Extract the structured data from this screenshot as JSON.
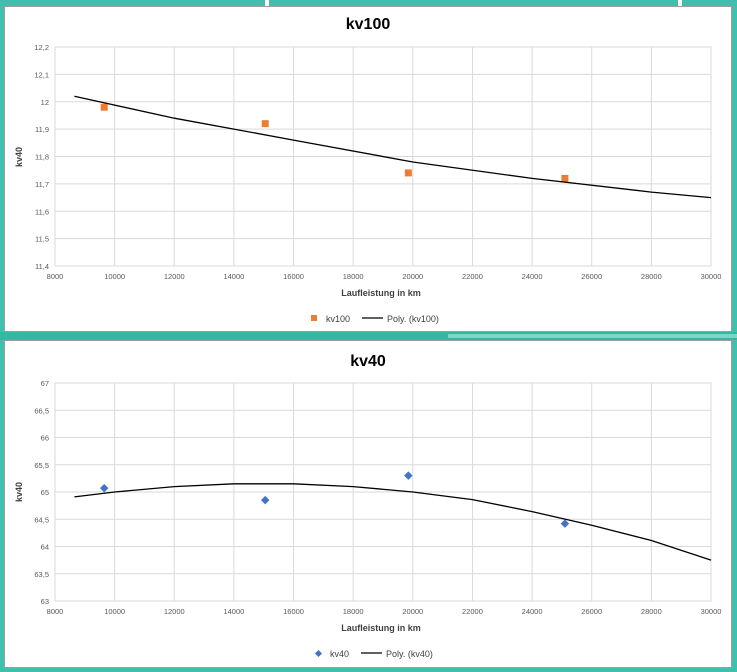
{
  "colors": {
    "background": "#3fbfae",
    "panel": "#ffffff",
    "grid": "#d9d9d9",
    "trend": "#000000",
    "kv100_marker": "#ed7d31",
    "kv40_marker": "#4472c4",
    "text": "#595959"
  },
  "chart_data": [
    {
      "type": "scatter",
      "title": "kv100",
      "xlabel": "Laufleistung in km",
      "ylabel": "kv40",
      "xlim": [
        8000,
        30000
      ],
      "ylim": [
        11.4,
        12.2
      ],
      "x_ticks": [
        "8000",
        "10000",
        "12000",
        "14000",
        "16000",
        "18000",
        "20000",
        "22000",
        "24000",
        "26000",
        "28000",
        "30000"
      ],
      "y_ticks": [
        "11,4",
        "11,5",
        "11,6",
        "11,7",
        "11,8",
        "11,9",
        "12",
        "12,1",
        "12,2"
      ],
      "grid": true,
      "legend_position": "bottom",
      "series": [
        {
          "name": "kv100",
          "marker": "square",
          "color": "#ed7d31",
          "points": [
            [
              9650,
              11.98
            ],
            [
              15050,
              11.92
            ],
            [
              19850,
              11.74
            ],
            [
              25100,
              11.72
            ]
          ]
        },
        {
          "name": "Poly. (kv100)",
          "kind": "trendline",
          "color": "#000000",
          "points": [
            [
              8650,
              12.02
            ],
            [
              12000,
              11.94
            ],
            [
              16000,
              11.86
            ],
            [
              20000,
              11.78
            ],
            [
              24000,
              11.72
            ],
            [
              28000,
              11.67
            ],
            [
              30000,
              11.65
            ]
          ]
        }
      ]
    },
    {
      "type": "scatter",
      "title": "kv40",
      "xlabel": "Laufleistung in km",
      "ylabel": "kv40",
      "xlim": [
        8000,
        30000
      ],
      "ylim": [
        63,
        67
      ],
      "x_ticks": [
        "8000",
        "10000",
        "12000",
        "14000",
        "16000",
        "18000",
        "20000",
        "22000",
        "24000",
        "26000",
        "28000",
        "30000"
      ],
      "y_ticks": [
        "63",
        "63,5",
        "64",
        "64,5",
        "65",
        "65,5",
        "66",
        "66,5",
        "67"
      ],
      "grid": true,
      "legend_position": "bottom",
      "series": [
        {
          "name": "kv40",
          "marker": "diamond",
          "color": "#4472c4",
          "points": [
            [
              9650,
              65.07
            ],
            [
              15050,
              64.85
            ],
            [
              19850,
              65.3
            ],
            [
              25100,
              64.42
            ]
          ]
        },
        {
          "name": "Poly. (kv40)",
          "kind": "trendline",
          "color": "#000000",
          "points": [
            [
              8650,
              64.91
            ],
            [
              10000,
              65.0
            ],
            [
              12000,
              65.1
            ],
            [
              14000,
              65.15
            ],
            [
              16000,
              65.15
            ],
            [
              18000,
              65.1
            ],
            [
              20000,
              65.0
            ],
            [
              22000,
              64.86
            ],
            [
              24000,
              64.64
            ],
            [
              26000,
              64.39
            ],
            [
              28000,
              64.11
            ],
            [
              30000,
              63.75
            ]
          ]
        }
      ]
    }
  ]
}
